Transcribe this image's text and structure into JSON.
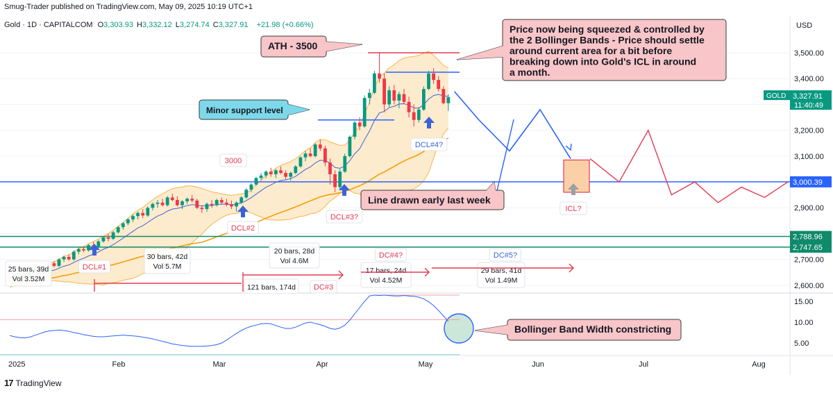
{
  "header": {
    "published": "Smug-Trader published on TradingView.com, May 09, 2025 10:19 UTC+1",
    "symbol": "Gold · 1D · CAPITALCOM",
    "ohlc": [
      {
        "k": "O",
        "v": "3,303.93"
      },
      {
        "k": "H",
        "v": "3,332.12"
      },
      {
        "k": "L",
        "v": "3,274.74"
      },
      {
        "k": "C",
        "v": "3,327.91"
      }
    ],
    "change": "+21.98 (+0.66%)",
    "currency": "USD"
  },
  "branding": {
    "logo_text": "TradingView",
    "logo_mark": "17"
  },
  "colors": {
    "up": "#089981",
    "down": "#f23645",
    "band_fill": "#fde7c4",
    "band_line": "#f5b54a",
    "sma_orange": "#f59e0b",
    "ema_blue": "#3b63d8",
    "proj_blue": "#2962ff",
    "proj_red": "#e53950",
    "support_green": "#0f8a6a",
    "callout_pink": "#f8c5c8",
    "callout_cyan": "#7dd8ea",
    "callout_green": "#bfe0cf"
  },
  "chart_data": {
    "type": "candlestick",
    "x_ticks": [
      "2025",
      "Feb",
      "Mar",
      "Apr",
      "May",
      "Jun",
      "Jul",
      "Aug"
    ],
    "price_axis": {
      "ticks": [
        "3,500.00",
        "3,400.00",
        "3,300.00",
        "3,200.00",
        "3,100.00",
        "3,000.00",
        "2,900.00",
        "2,800.00",
        "2,700.00",
        "2,600.00"
      ],
      "ylim": [
        2570,
        3570
      ]
    },
    "price_labels": [
      {
        "name": "GOLD",
        "value": "3,327.91",
        "sub": "11:40:49",
        "price": 3327.91
      },
      {
        "value": "3,000.39",
        "price": 3000.39
      },
      {
        "value": "2,788.96",
        "price": 2788.96
      },
      {
        "value": "2,747.65",
        "price": 2747.65
      }
    ],
    "candles": [
      [
        2630,
        2638,
        2615,
        2628
      ],
      [
        2628,
        2645,
        2620,
        2640
      ],
      [
        2640,
        2652,
        2632,
        2645
      ],
      [
        2645,
        2650,
        2630,
        2633
      ],
      [
        2633,
        2660,
        2630,
        2655
      ],
      [
        2655,
        2668,
        2648,
        2662
      ],
      [
        2662,
        2670,
        2645,
        2650
      ],
      [
        2650,
        2675,
        2645,
        2670
      ],
      [
        2670,
        2690,
        2665,
        2685
      ],
      [
        2685,
        2695,
        2670,
        2675
      ],
      [
        2675,
        2705,
        2670,
        2700
      ],
      [
        2700,
        2715,
        2690,
        2710
      ],
      [
        2710,
        2720,
        2695,
        2700
      ],
      [
        2700,
        2735,
        2695,
        2730
      ],
      [
        2730,
        2745,
        2720,
        2740
      ],
      [
        2740,
        2748,
        2728,
        2735
      ],
      [
        2735,
        2760,
        2730,
        2755
      ],
      [
        2755,
        2768,
        2745,
        2750
      ],
      [
        2750,
        2775,
        2745,
        2770
      ],
      [
        2770,
        2790,
        2765,
        2785
      ],
      [
        2785,
        2800,
        2770,
        2780
      ],
      [
        2780,
        2810,
        2775,
        2805
      ],
      [
        2805,
        2830,
        2800,
        2825
      ],
      [
        2825,
        2845,
        2815,
        2840
      ],
      [
        2840,
        2860,
        2832,
        2855
      ],
      [
        2855,
        2875,
        2845,
        2868
      ],
      [
        2868,
        2885,
        2855,
        2880
      ],
      [
        2880,
        2895,
        2860,
        2870
      ],
      [
        2870,
        2905,
        2865,
        2900
      ],
      [
        2900,
        2920,
        2890,
        2915
      ],
      [
        2915,
        2930,
        2900,
        2920
      ],
      [
        2920,
        2935,
        2905,
        2910
      ],
      [
        2910,
        2945,
        2905,
        2940
      ],
      [
        2940,
        2955,
        2925,
        2930
      ],
      [
        2930,
        2945,
        2905,
        2910
      ],
      [
        2910,
        2930,
        2895,
        2925
      ],
      [
        2925,
        2940,
        2915,
        2935
      ],
      [
        2935,
        2950,
        2920,
        2928
      ],
      [
        2928,
        2935,
        2895,
        2900
      ],
      [
        2900,
        2910,
        2880,
        2895
      ],
      [
        2895,
        2920,
        2885,
        2915
      ],
      [
        2915,
        2930,
        2900,
        2910
      ],
      [
        2910,
        2935,
        2905,
        2930
      ],
      [
        2930,
        2940,
        2915,
        2920
      ],
      [
        2920,
        2935,
        2905,
        2912
      ],
      [
        2912,
        2928,
        2895,
        2905
      ],
      [
        2905,
        2925,
        2885,
        2920
      ],
      [
        2920,
        2945,
        2915,
        2940
      ],
      [
        2940,
        2975,
        2935,
        2970
      ],
      [
        2970,
        2995,
        2960,
        2990
      ],
      [
        2990,
        3020,
        2985,
        3015
      ],
      [
        3015,
        3035,
        3005,
        3025
      ],
      [
        3025,
        3045,
        3015,
        3040
      ],
      [
        3040,
        3055,
        3020,
        3030
      ],
      [
        3030,
        3050,
        3015,
        3045
      ],
      [
        3045,
        3060,
        3030,
        3035
      ],
      [
        3035,
        3045,
        3010,
        3020
      ],
      [
        3020,
        3040,
        3005,
        3035
      ],
      [
        3035,
        3065,
        3030,
        3060
      ],
      [
        3060,
        3100,
        3055,
        3095
      ],
      [
        3095,
        3120,
        3080,
        3110
      ],
      [
        3110,
        3130,
        3095,
        3100
      ],
      [
        3100,
        3150,
        3095,
        3145
      ],
      [
        3145,
        3165,
        3120,
        3130
      ],
      [
        3130,
        3140,
        3060,
        3075
      ],
      [
        3075,
        3090,
        2990,
        3030
      ],
      [
        3030,
        3045,
        2960,
        2980
      ],
      [
        2980,
        3050,
        2970,
        3040
      ],
      [
        3040,
        3110,
        3035,
        3100
      ],
      [
        3100,
        3180,
        3095,
        3175
      ],
      [
        3175,
        3235,
        3165,
        3230
      ],
      [
        3230,
        3250,
        3200,
        3215
      ],
      [
        3215,
        3335,
        3210,
        3325
      ],
      [
        3325,
        3360,
        3300,
        3345
      ],
      [
        3345,
        3430,
        3340,
        3420
      ],
      [
        3420,
        3500,
        3385,
        3400
      ],
      [
        3400,
        3420,
        3270,
        3300
      ],
      [
        3300,
        3370,
        3290,
        3355
      ],
      [
        3355,
        3375,
        3300,
        3315
      ],
      [
        3315,
        3350,
        3285,
        3340
      ],
      [
        3340,
        3360,
        3300,
        3310
      ],
      [
        3310,
        3330,
        3250,
        3270
      ],
      [
        3270,
        3300,
        3215,
        3240
      ],
      [
        3240,
        3290,
        3230,
        3280
      ],
      [
        3280,
        3370,
        3275,
        3360
      ],
      [
        3360,
        3430,
        3355,
        3420
      ],
      [
        3420,
        3440,
        3380,
        3395
      ],
      [
        3395,
        3410,
        3350,
        3360
      ],
      [
        3360,
        3370,
        3300,
        3305
      ],
      [
        3305,
        3340,
        3275,
        3328
      ]
    ],
    "blue_projection": [
      [
        3380,
        3350
      ],
      [
        3500,
        3240
      ],
      [
        3650,
        3120
      ],
      [
        3800,
        3280
      ],
      [
        3950,
        3090
      ]
    ],
    "red_projection": [
      [
        4100,
        3090
      ],
      [
        4350,
        3000
      ],
      [
        4600,
        3200
      ],
      [
        4800,
        2950
      ],
      [
        5000,
        3000
      ],
      [
        5200,
        2920
      ],
      [
        5400,
        2980
      ],
      [
        5600,
        2940
      ],
      [
        5800,
        3000
      ]
    ],
    "icl_box": {
      "x_from": 3950,
      "x_to": 4120,
      "y_from": 2960,
      "y_to": 3085
    },
    "horizontal_levels": [
      {
        "name": "ATH",
        "price": 3500,
        "color": "red"
      },
      {
        "name": "ATH zone top",
        "price": 3425,
        "color": "blue"
      },
      {
        "name": "minor support",
        "price": 3240,
        "color": "blue"
      },
      {
        "name": "3000 level",
        "price": 3000.39,
        "color": "blue"
      },
      {
        "name": "support 1",
        "price": 2788.96,
        "color": "green"
      },
      {
        "name": "support 2",
        "price": 2747.65,
        "color": "green"
      }
    ],
    "cycle_ranges": [
      {
        "bars": "25 bars, 39d",
        "vol": "Vol 3.52M"
      },
      {
        "bars": "30 bars, 42d",
        "vol": "Vol 5.7M"
      },
      {
        "bars": "20 bars, 28d",
        "vol": "Vol 4.6M"
      },
      {
        "bars": "121 bars, 174d",
        "vol": ""
      },
      {
        "bars": "17 bars, 24d",
        "vol": "Vol 4.52M"
      },
      {
        "bars": "29 bars, 41d",
        "vol": "Vol 1.49M"
      }
    ],
    "markers": [
      "DCL#1",
      "DCL#2",
      "DCL#3?",
      "DCL#4?",
      "ICL?",
      "3000",
      "DC#3",
      "DC#4?",
      "DC#5?"
    ],
    "bbw": {
      "ticks": [
        "15.00",
        "10.00",
        "5.00"
      ],
      "ylim": [
        2,
        17
      ],
      "values": [
        6.8,
        6.5,
        6.3,
        6.2,
        6.4,
        6.8,
        7.2,
        7.6,
        7.9,
        8.0,
        8.1,
        8.0,
        7.8,
        7.5,
        7.3,
        7.0,
        6.8,
        6.6,
        6.5,
        6.5,
        6.6,
        6.7,
        6.8,
        6.9,
        6.8,
        6.7,
        6.6,
        6.4,
        6.2,
        6.0,
        5.7,
        5.4,
        5.1,
        4.8,
        4.6,
        4.4,
        4.3,
        4.2,
        4.2,
        4.2,
        4.3,
        4.4,
        4.6,
        5.0,
        5.7,
        6.5,
        7.3,
        8.0,
        8.6,
        9.0,
        9.3,
        9.6,
        9.7,
        9.6,
        9.2,
        8.8,
        8.5,
        8.5,
        8.8,
        9.3,
        9.8,
        10.0,
        9.7,
        9.4,
        9.0,
        8.5,
        8.3,
        8.6,
        9.3,
        10.5,
        12.0,
        13.5,
        15.0,
        16.3,
        16.5,
        16.4,
        16.5,
        16.4,
        16.3,
        16.3,
        16.4,
        16.3,
        16.2,
        16.0,
        15.6,
        14.9,
        14.0,
        12.8,
        11.5,
        10.2
      ]
    }
  },
  "annotations": {
    "ath": "ATH - 3500",
    "squeeze": [
      "Price now being squeezed & controlled by",
      "the 2 Bollinger Bands - Price should settle",
      "around current area for a bit before",
      "breaking down into Gold's ICL in around",
      "a month."
    ],
    "minor_support": "Minor support level",
    "line_drawn": "Line drawn early last week",
    "bbw_label": "Bollinger Band Width constricting"
  }
}
